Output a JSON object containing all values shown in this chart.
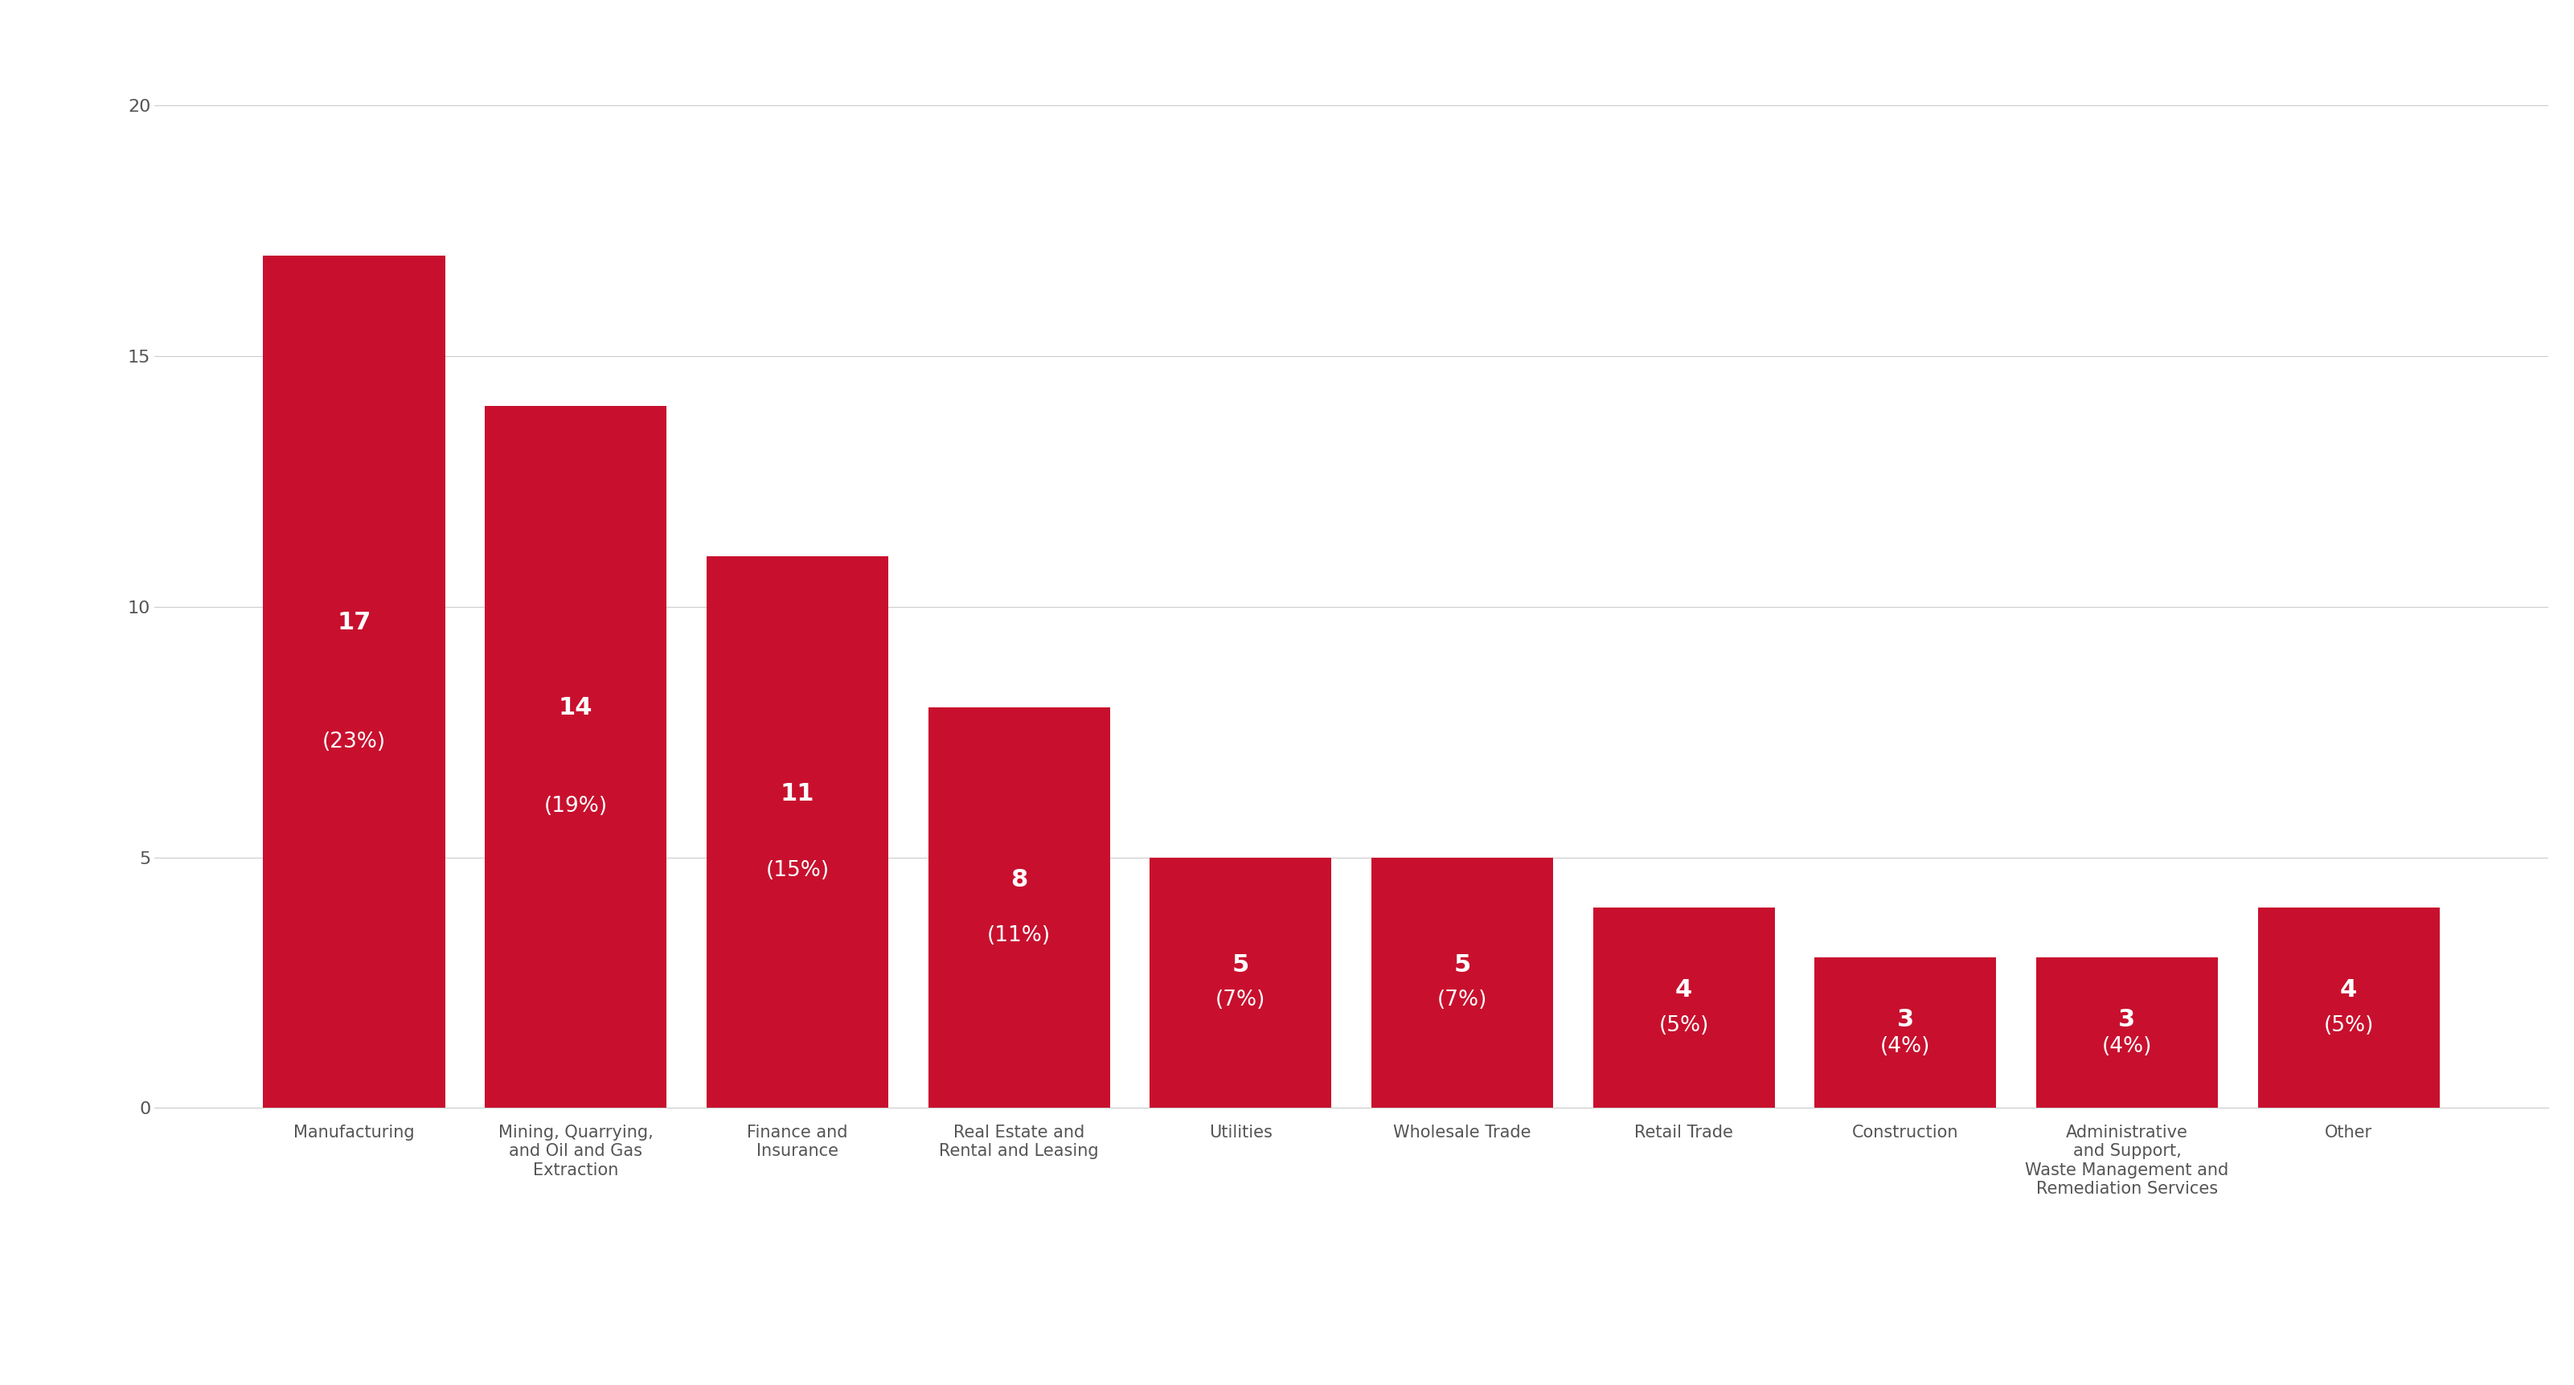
{
  "categories": [
    "Manufacturing",
    "Mining, Quarrying,\nand Oil and Gas\nExtraction",
    "Finance and\nInsurance",
    "Real Estate and\nRental and Leasing",
    "Utilities",
    "Wholesale Trade",
    "Retail Trade",
    "Construction",
    "Administrative\nand Support,\nWaste Management and\nRemediation Services",
    "Other"
  ],
  "values": [
    17,
    14,
    11,
    8,
    5,
    5,
    4,
    3,
    3,
    4
  ],
  "percentages": [
    "23%",
    "19%",
    "15%",
    "11%",
    "7%",
    "7%",
    "5%",
    "4%",
    "4%",
    "5%"
  ],
  "bar_color": "#c8102e",
  "background_color": "#ffffff",
  "ylim": [
    0,
    21
  ],
  "yticks": [
    0,
    5,
    10,
    15,
    20
  ],
  "grid_color": "#cccccc",
  "label_color": "#ffffff",
  "tick_color": "#555555",
  "spine_color": "#cccccc",
  "value_fontsize": 22,
  "pct_fontsize": 19,
  "xtick_fontsize": 15,
  "ytick_fontsize": 16,
  "bar_width": 0.82
}
